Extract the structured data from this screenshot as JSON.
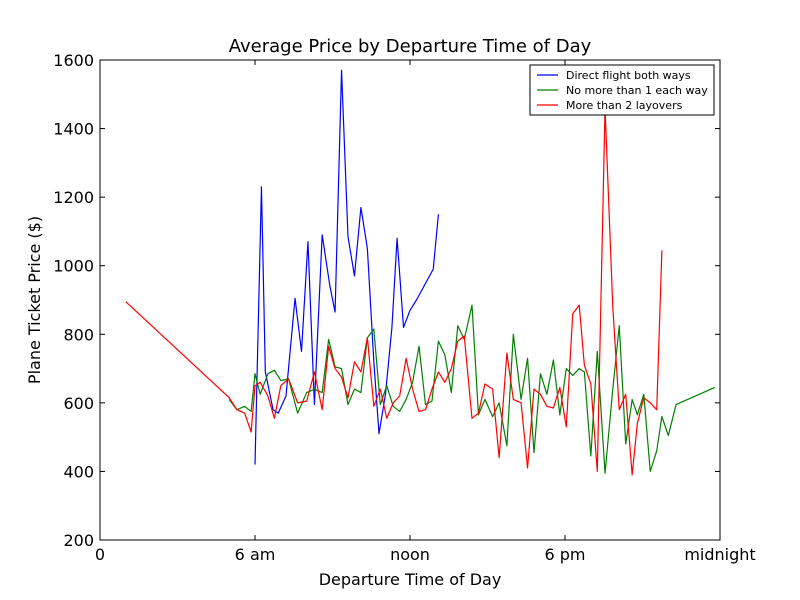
{
  "chart_data": {
    "type": "line",
    "title": "Average Price by Departure Time of Day",
    "xlabel": "Departure Time of Day",
    "ylabel": "Plane Ticket Price ($)",
    "x_unit": "hours since midnight",
    "xlim": [
      0,
      24
    ],
    "ylim": [
      200,
      1600
    ],
    "x_ticks": [
      {
        "value": 0,
        "label": "0"
      },
      {
        "value": 6,
        "label": "6 am"
      },
      {
        "value": 12,
        "label": "noon"
      },
      {
        "value": 18,
        "label": "6 pm"
      },
      {
        "value": 24,
        "label": "midnight"
      }
    ],
    "y_ticks": [
      200,
      400,
      600,
      800,
      1000,
      1200,
      1400,
      1600
    ],
    "grid": false,
    "legend_position": "top-right",
    "series": [
      {
        "name": "Direct flight both ways",
        "color": "#0000ff",
        "x": [
          6.0,
          6.25,
          6.4,
          6.7,
          6.9,
          7.2,
          7.55,
          7.8,
          8.05,
          8.3,
          8.6,
          8.9,
          9.1,
          9.35,
          9.6,
          9.85,
          10.1,
          10.35,
          10.6,
          10.8,
          11.05,
          11.3,
          11.5,
          11.75,
          12.0,
          12.25,
          12.9,
          13.1
        ],
        "y": [
          420,
          1230,
          690,
          580,
          570,
          620,
          905,
          750,
          1070,
          595,
          1090,
          940,
          865,
          1570,
          1085,
          970,
          1170,
          1050,
          720,
          510,
          625,
          820,
          1080,
          820,
          870,
          900,
          990,
          1150
        ]
      },
      {
        "name": "No more than 1 each way",
        "color": "#008000",
        "x": [
          5.0,
          5.3,
          5.6,
          5.85,
          6.0,
          6.2,
          6.5,
          6.75,
          7.0,
          7.3,
          7.65,
          8.0,
          8.3,
          8.6,
          8.85,
          9.1,
          9.35,
          9.6,
          9.85,
          10.1,
          10.35,
          10.6,
          10.85,
          11.1,
          11.35,
          11.6,
          11.85,
          12.1,
          12.35,
          12.6,
          12.85,
          13.1,
          13.35,
          13.6,
          13.85,
          14.1,
          14.4,
          14.65,
          14.9,
          15.2,
          15.45,
          15.75,
          16.0,
          16.3,
          16.55,
          16.8,
          17.05,
          17.3,
          17.55,
          17.8,
          18.05,
          18.3,
          18.55,
          18.75,
          19.0,
          19.25,
          19.55,
          19.85,
          20.1,
          20.35,
          20.6,
          20.8,
          21.05,
          21.3,
          21.55,
          21.75,
          22.0,
          22.3,
          23.8
        ],
        "y": [
          610,
          580,
          590,
          575,
          685,
          625,
          685,
          695,
          665,
          670,
          570,
          630,
          640,
          630,
          785,
          705,
          700,
          595,
          640,
          630,
          790,
          815,
          595,
          650,
          590,
          575,
          610,
          660,
          765,
          595,
          605,
          780,
          740,
          630,
          825,
          785,
          885,
          565,
          610,
          560,
          600,
          475,
          800,
          610,
          730,
          455,
          685,
          625,
          725,
          565,
          700,
          680,
          700,
          690,
          445,
          750,
          395,
          640,
          825,
          480,
          610,
          565,
          625,
          400,
          460,
          560,
          505,
          595,
          645
        ]
      },
      {
        "name": "More than 2 layovers",
        "color": "#ff0000",
        "x": [
          1.0,
          5.0,
          5.3,
          5.6,
          5.85,
          6.0,
          6.2,
          6.5,
          6.75,
          7.0,
          7.3,
          7.65,
          8.0,
          8.3,
          8.6,
          8.85,
          9.1,
          9.35,
          9.6,
          9.85,
          10.1,
          10.35,
          10.6,
          10.85,
          11.1,
          11.35,
          11.6,
          11.85,
          12.1,
          12.35,
          12.6,
          12.85,
          13.1,
          13.35,
          13.6,
          13.85,
          14.1,
          14.4,
          14.65,
          14.9,
          15.2,
          15.45,
          15.75,
          16.0,
          16.3,
          16.55,
          16.8,
          17.05,
          17.3,
          17.55,
          17.8,
          18.05,
          18.3,
          18.55,
          18.75,
          19.0,
          19.25,
          19.55,
          19.85,
          20.1,
          20.35,
          20.6,
          20.8,
          21.05,
          21.3,
          21.55,
          21.75
        ],
        "y": [
          895,
          615,
          580,
          570,
          515,
          650,
          660,
          620,
          555,
          650,
          670,
          600,
          605,
          690,
          580,
          765,
          700,
          675,
          615,
          720,
          690,
          790,
          590,
          640,
          555,
          600,
          620,
          730,
          640,
          575,
          580,
          640,
          690,
          660,
          700,
          780,
          795,
          555,
          570,
          655,
          640,
          440,
          745,
          610,
          600,
          410,
          640,
          625,
          590,
          585,
          645,
          530,
          860,
          885,
          710,
          655,
          400,
          1460,
          880,
          580,
          625,
          390,
          540,
          615,
          600,
          580,
          1045
        ]
      }
    ]
  }
}
